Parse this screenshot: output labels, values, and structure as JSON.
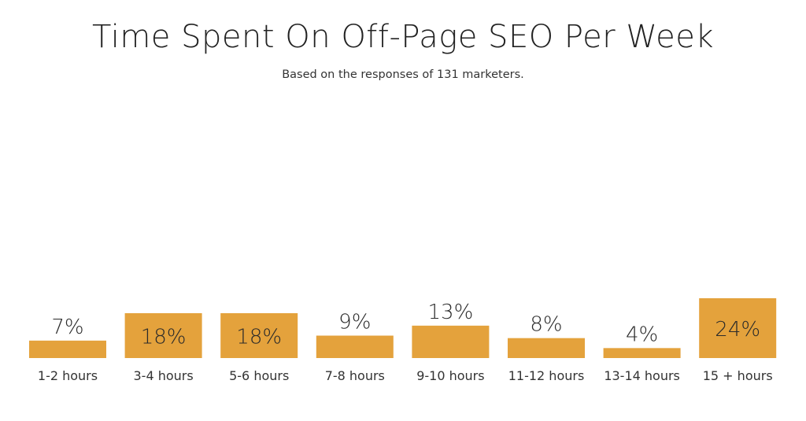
{
  "title": "Time Spent On Off-Page SEO Per Week",
  "subtitle": "Based on the responses of 131 marketers.",
  "colors": {
    "bar": "#E4A23C",
    "text": "#2a2a2a"
  },
  "chart_data": {
    "type": "bar",
    "categories": [
      "1-2 hours",
      "3-4 hours",
      "5-6 hours",
      "7-8 hours",
      "9-10 hours",
      "11-12 hours",
      "13-14 hours",
      "15 + hours"
    ],
    "values": [
      7,
      18,
      18,
      9,
      13,
      8,
      4,
      24
    ],
    "value_labels": [
      "7%",
      "18%",
      "18%",
      "9%",
      "13%",
      "8%",
      "4%",
      "24%"
    ],
    "value_unit": "%",
    "grid": false,
    "ylim": [
      0,
      24
    ]
  }
}
